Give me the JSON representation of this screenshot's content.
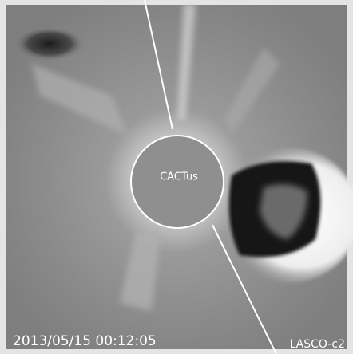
{
  "image": {
    "label": "CACTus",
    "timestamp": "2013/05/15 00:12:05",
    "instrument": "LASCO-c2"
  }
}
